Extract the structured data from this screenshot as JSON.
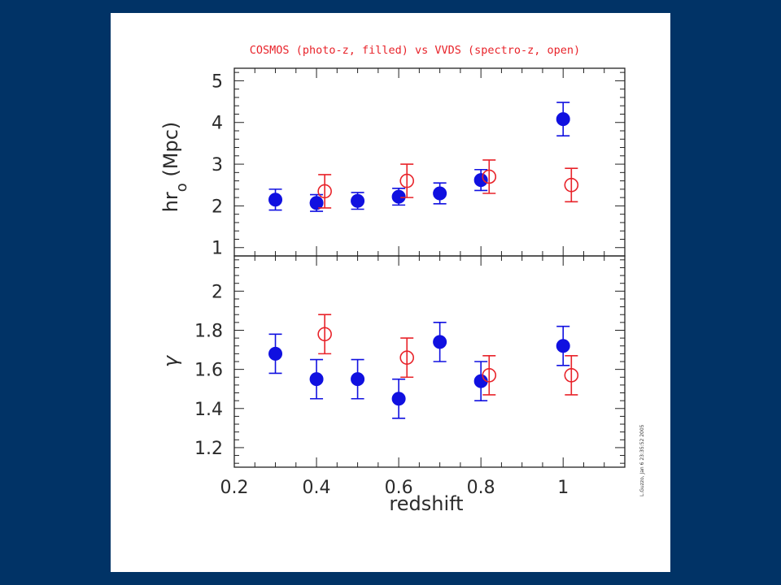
{
  "colors": {
    "background": "#013366",
    "panel": "#ffffff",
    "cosmos": "#1010e0",
    "vvds": "#e8232a",
    "axis": "#222222"
  },
  "chart_data": {
    "type": "scatter",
    "title": "COSMOS (photo-z, filled) vs VVDS (spectro-z, open)",
    "side_note": "L.Guzzo, Jan 6 23:35:52 2005",
    "xlabel": "redshift",
    "xlim": [
      0.2,
      1.15
    ],
    "xticks": [
      "0.2",
      "0.4",
      "0.6",
      "0.8",
      "1"
    ],
    "grid": false,
    "panels": [
      {
        "id": "hr0",
        "ylabel": "hr",
        "ylabel_sub": "o",
        "ylabel_unit": "(Mpc)",
        "ylim": [
          0.8,
          5.3
        ],
        "yticks": [
          "1",
          "2",
          "3",
          "4",
          "5"
        ],
        "series": [
          {
            "style": "filled",
            "color": "#1010e0",
            "points": [
              {
                "x": 0.3,
                "y": 2.15,
                "err": 0.25
              },
              {
                "x": 0.4,
                "y": 2.07,
                "err": 0.2
              },
              {
                "x": 0.5,
                "y": 2.12,
                "err": 0.2
              },
              {
                "x": 0.6,
                "y": 2.22,
                "err": 0.2
              },
              {
                "x": 0.7,
                "y": 2.3,
                "err": 0.25
              },
              {
                "x": 0.8,
                "y": 2.62,
                "err": 0.25
              },
              {
                "x": 1.0,
                "y": 4.08,
                "err": 0.4
              }
            ]
          },
          {
            "style": "open",
            "color": "#e8232a",
            "points": [
              {
                "x": 0.42,
                "y": 2.35,
                "err": 0.4
              },
              {
                "x": 0.62,
                "y": 2.6,
                "err": 0.4
              },
              {
                "x": 0.82,
                "y": 2.7,
                "err": 0.4
              },
              {
                "x": 1.02,
                "y": 2.5,
                "err": 0.4
              }
            ]
          }
        ]
      },
      {
        "id": "gamma",
        "ylabel": "γ",
        "ylim": [
          1.1,
          2.18
        ],
        "yticks": [
          "1.2",
          "1.4",
          "1.6",
          "1.8",
          "2"
        ],
        "series": [
          {
            "style": "filled",
            "color": "#1010e0",
            "points": [
              {
                "x": 0.3,
                "y": 1.68,
                "err": 0.1
              },
              {
                "x": 0.4,
                "y": 1.55,
                "err": 0.1
              },
              {
                "x": 0.5,
                "y": 1.55,
                "err": 0.1
              },
              {
                "x": 0.6,
                "y": 1.45,
                "err": 0.1
              },
              {
                "x": 0.7,
                "y": 1.74,
                "err": 0.1
              },
              {
                "x": 0.8,
                "y": 1.54,
                "err": 0.1
              },
              {
                "x": 1.0,
                "y": 1.72,
                "err": 0.1
              }
            ]
          },
          {
            "style": "open",
            "color": "#e8232a",
            "points": [
              {
                "x": 0.42,
                "y": 1.78,
                "err": 0.1
              },
              {
                "x": 0.62,
                "y": 1.66,
                "err": 0.1
              },
              {
                "x": 0.82,
                "y": 1.57,
                "err": 0.1
              },
              {
                "x": 1.02,
                "y": 1.57,
                "err": 0.1
              }
            ]
          }
        ]
      }
    ]
  }
}
